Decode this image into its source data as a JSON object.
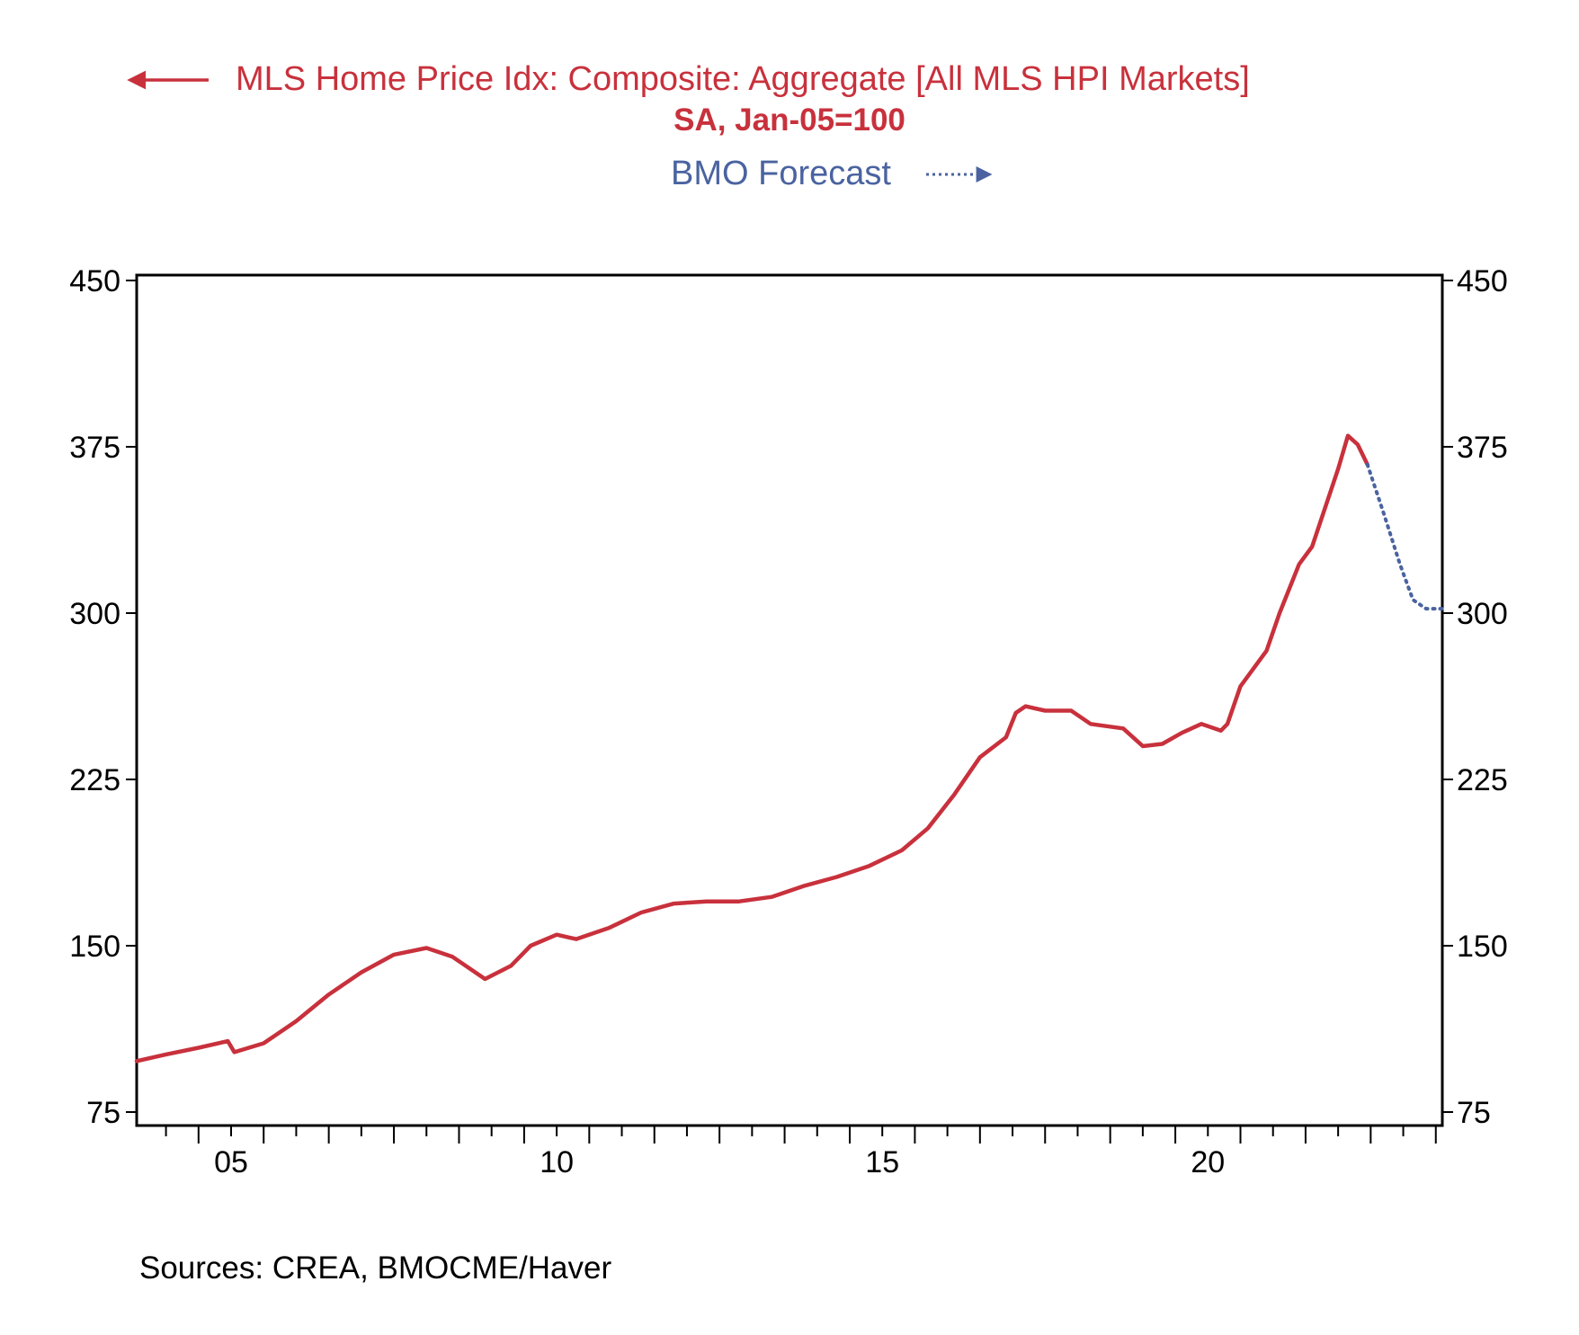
{
  "chart_data": {
    "type": "line",
    "legend": {
      "primary_label": "MLS Home Price Idx: Composite: Aggregate [All MLS HPI Markets]",
      "primary_sub": "SA, Jan-05=100",
      "forecast_label": "BMO Forecast"
    },
    "source": "Sources:  CREA, BMOCME/Haver",
    "colors": {
      "actual": "#c8313c",
      "forecast": "#4a63a0",
      "axis": "#000000"
    },
    "y_axis": {
      "min": 75,
      "max": 450,
      "ticks": [
        75,
        150,
        225,
        300,
        375,
        450
      ]
    },
    "x_axis": {
      "min": 2003.55,
      "max": 2023.6,
      "ticks": [
        2005,
        2010,
        2015,
        2020
      ],
      "tick_labels": [
        "05",
        "10",
        "15",
        "20"
      ]
    },
    "series": [
      {
        "role": "actual",
        "style": "solid",
        "x": [
          2003.55,
          2004.0,
          2004.5,
          2004.95,
          2005.05,
          2005.5,
          2006.0,
          2006.5,
          2007.0,
          2007.5,
          2008.0,
          2008.4,
          2008.9,
          2009.3,
          2009.6,
          2010.0,
          2010.3,
          2010.8,
          2011.3,
          2011.8,
          2012.3,
          2012.8,
          2013.3,
          2013.8,
          2014.3,
          2014.8,
          2015.3,
          2015.7,
          2016.1,
          2016.5,
          2016.9,
          2017.05,
          2017.2,
          2017.5,
          2017.9,
          2018.2,
          2018.7,
          2019.0,
          2019.3,
          2019.6,
          2019.9,
          2020.2,
          2020.3,
          2020.5,
          2020.9,
          2021.1,
          2021.4,
          2021.6,
          2022.0,
          2022.15,
          2022.3,
          2022.45
        ],
        "y": [
          98,
          101,
          104,
          107,
          102,
          106,
          116,
          128,
          138,
          146,
          149,
          145,
          135,
          141,
          150,
          155,
          153,
          158,
          165,
          169,
          170,
          170,
          172,
          177,
          181,
          186,
          193,
          203,
          218,
          235,
          244,
          255,
          258,
          256,
          256,
          250,
          248,
          240,
          241,
          246,
          250,
          247,
          250,
          267,
          283,
          300,
          322,
          330,
          365,
          380,
          376,
          367
        ]
      },
      {
        "role": "forecast",
        "style": "dotted",
        "x": [
          2022.45,
          2022.7,
          2022.95,
          2023.15,
          2023.35,
          2023.6
        ],
        "y": [
          367,
          345,
          322,
          306,
          302,
          302
        ]
      }
    ]
  }
}
